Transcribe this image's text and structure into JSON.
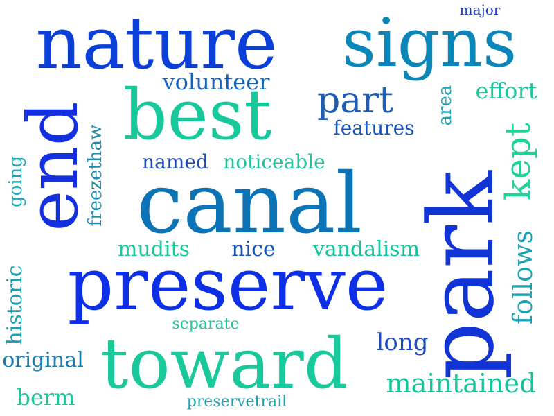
{
  "words": [
    {
      "text": "nature",
      "color": "#0a3fd8"
    },
    {
      "text": "signs",
      "color": "#0b86b8"
    },
    {
      "text": "major",
      "color": "#1d3fc9"
    },
    {
      "text": "best",
      "color": "#16c89a"
    },
    {
      "text": "volunteer",
      "color": "#1662b8"
    },
    {
      "text": "part",
      "color": "#1f5cb2"
    },
    {
      "text": "effort",
      "color": "#19c99b"
    },
    {
      "text": "area",
      "color": "#1aa6b4"
    },
    {
      "text": "features",
      "color": "#1550bf"
    },
    {
      "text": "kept",
      "color": "#1ed39a"
    },
    {
      "text": "end",
      "color": "#1230e0"
    },
    {
      "text": "going",
      "color": "#1aa7b3"
    },
    {
      "text": "freezethaw",
      "color": "#1b8cb0"
    },
    {
      "text": "named",
      "color": "#1e4bb4"
    },
    {
      "text": "noticeable",
      "color": "#1ec49c"
    },
    {
      "text": "canal",
      "color": "#0c73b6"
    },
    {
      "text": "park",
      "color": "#1034d6"
    },
    {
      "text": "mudits",
      "color": "#19c99b"
    },
    {
      "text": "nice",
      "color": "#1b55bc"
    },
    {
      "text": "vandalism",
      "color": "#16c49c"
    },
    {
      "text": "follows",
      "color": "#1aa2b3"
    },
    {
      "text": "preserve",
      "color": "#0d2fe6"
    },
    {
      "text": "historic",
      "color": "#1ba0b2"
    },
    {
      "text": "separate",
      "color": "#1fc6a0"
    },
    {
      "text": "long",
      "color": "#1f4cc0"
    },
    {
      "text": "original",
      "color": "#1a7cb0"
    },
    {
      "text": "toward",
      "color": "#19c99b"
    },
    {
      "text": "maintained",
      "color": "#16c49c"
    },
    {
      "text": "berm",
      "color": "#1fc69c"
    },
    {
      "text": "preservetrail",
      "color": "#1ba3b2"
    }
  ]
}
